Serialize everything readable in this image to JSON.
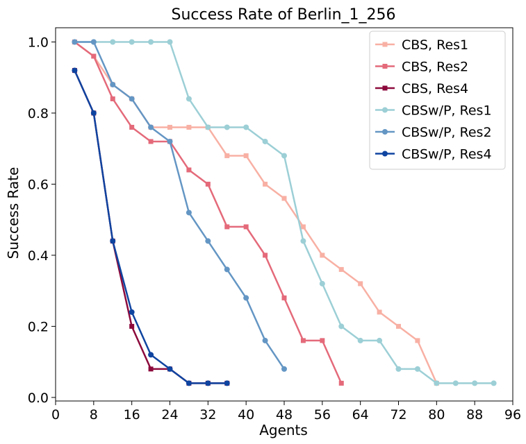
{
  "chart_data": {
    "type": "line",
    "title": "Success Rate of Berlin_1_256",
    "xlabel": "Agents",
    "ylabel": "Success Rate",
    "xlim": [
      0,
      96
    ],
    "ylim": [
      -0.01,
      1.04
    ],
    "xticks": [
      0,
      8,
      16,
      24,
      32,
      40,
      48,
      56,
      64,
      72,
      80,
      88,
      96
    ],
    "xtick_labels": [
      "0",
      "8",
      "16",
      "24",
      "32",
      "40",
      "48",
      "56",
      "64",
      "72",
      "80",
      "88",
      "96"
    ],
    "yticks": [
      0.0,
      0.2,
      0.4,
      0.6,
      0.8,
      1.0
    ],
    "ytick_labels": [
      "0.0",
      "0.2",
      "0.4",
      "0.6",
      "0.8",
      "1.0"
    ],
    "grid": false,
    "legend_position": "top-right",
    "series": [
      {
        "name": "CBS, Res1",
        "color": "#f8b0a4",
        "marker": "square",
        "x": [
          4,
          8,
          12,
          16,
          20,
          24,
          28,
          32,
          36,
          40,
          44,
          48,
          52,
          56,
          60,
          64,
          68,
          72,
          76,
          80
        ],
        "values": [
          1.0,
          0.96,
          0.88,
          0.84,
          0.76,
          0.76,
          0.76,
          0.76,
          0.68,
          0.68,
          0.6,
          0.56,
          0.48,
          0.4,
          0.36,
          0.32,
          0.24,
          0.2,
          0.16,
          0.04
        ]
      },
      {
        "name": "CBS, Res2",
        "color": "#e46a7a",
        "marker": "square",
        "x": [
          4,
          8,
          12,
          16,
          20,
          24,
          28,
          32,
          36,
          40,
          44,
          48,
          52,
          56,
          60
        ],
        "values": [
          1.0,
          0.96,
          0.84,
          0.76,
          0.72,
          0.72,
          0.64,
          0.6,
          0.48,
          0.48,
          0.4,
          0.28,
          0.16,
          0.16,
          0.04
        ]
      },
      {
        "name": "CBS, Res4",
        "color": "#8c0a3c",
        "marker": "square",
        "x": [
          4,
          8,
          12,
          16,
          20,
          24,
          28,
          32,
          36
        ],
        "values": [
          0.92,
          0.8,
          0.44,
          0.2,
          0.08,
          0.08,
          0.04,
          0.04,
          0.04
        ]
      },
      {
        "name": "CBSw/P, Res1",
        "color": "#9ccfd6",
        "marker": "circle",
        "x": [
          4,
          8,
          12,
          16,
          20,
          24,
          28,
          32,
          36,
          40,
          44,
          48,
          52,
          56,
          60,
          64,
          68,
          72,
          76,
          80,
          84,
          88,
          92
        ],
        "values": [
          1.0,
          1.0,
          1.0,
          1.0,
          1.0,
          1.0,
          0.84,
          0.76,
          0.76,
          0.76,
          0.72,
          0.68,
          0.44,
          0.32,
          0.2,
          0.16,
          0.16,
          0.08,
          0.08,
          0.04,
          0.04,
          0.04,
          0.04
        ]
      },
      {
        "name": "CBSw/P, Res2",
        "color": "#6496c4",
        "marker": "circle",
        "x": [
          4,
          8,
          12,
          16,
          20,
          24,
          28,
          32,
          36,
          40,
          44,
          48
        ],
        "values": [
          1.0,
          1.0,
          0.88,
          0.84,
          0.76,
          0.72,
          0.52,
          0.44,
          0.36,
          0.28,
          0.16,
          0.08
        ]
      },
      {
        "name": "CBSw/P, Res4",
        "color": "#0f44a0",
        "marker": "circle",
        "x": [
          4,
          8,
          12,
          16,
          20,
          24,
          28,
          32,
          36
        ],
        "values": [
          0.92,
          0.8,
          0.44,
          0.24,
          0.12,
          0.08,
          0.04,
          0.04,
          0.04
        ]
      }
    ]
  }
}
